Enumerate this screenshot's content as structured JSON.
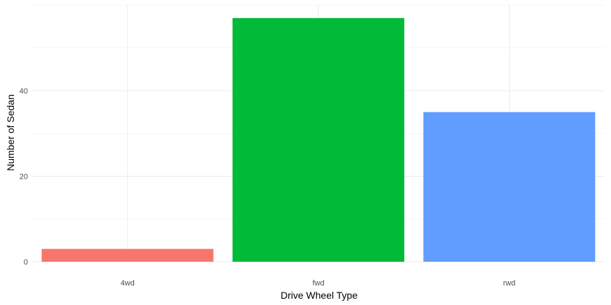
{
  "chart_data": {
    "type": "bar",
    "categories": [
      "4wd",
      "fwd",
      "rwd"
    ],
    "values": [
      3,
      57,
      35
    ],
    "colors": [
      "#F8766D",
      "#00BA38",
      "#619CFF"
    ],
    "title": "",
    "xlabel": "Drive Wheel Type",
    "ylabel": "Number of Sedan",
    "ylim": [
      0,
      60
    ],
    "yticks": [
      0,
      20,
      40
    ],
    "grid": true,
    "legend": "none"
  }
}
